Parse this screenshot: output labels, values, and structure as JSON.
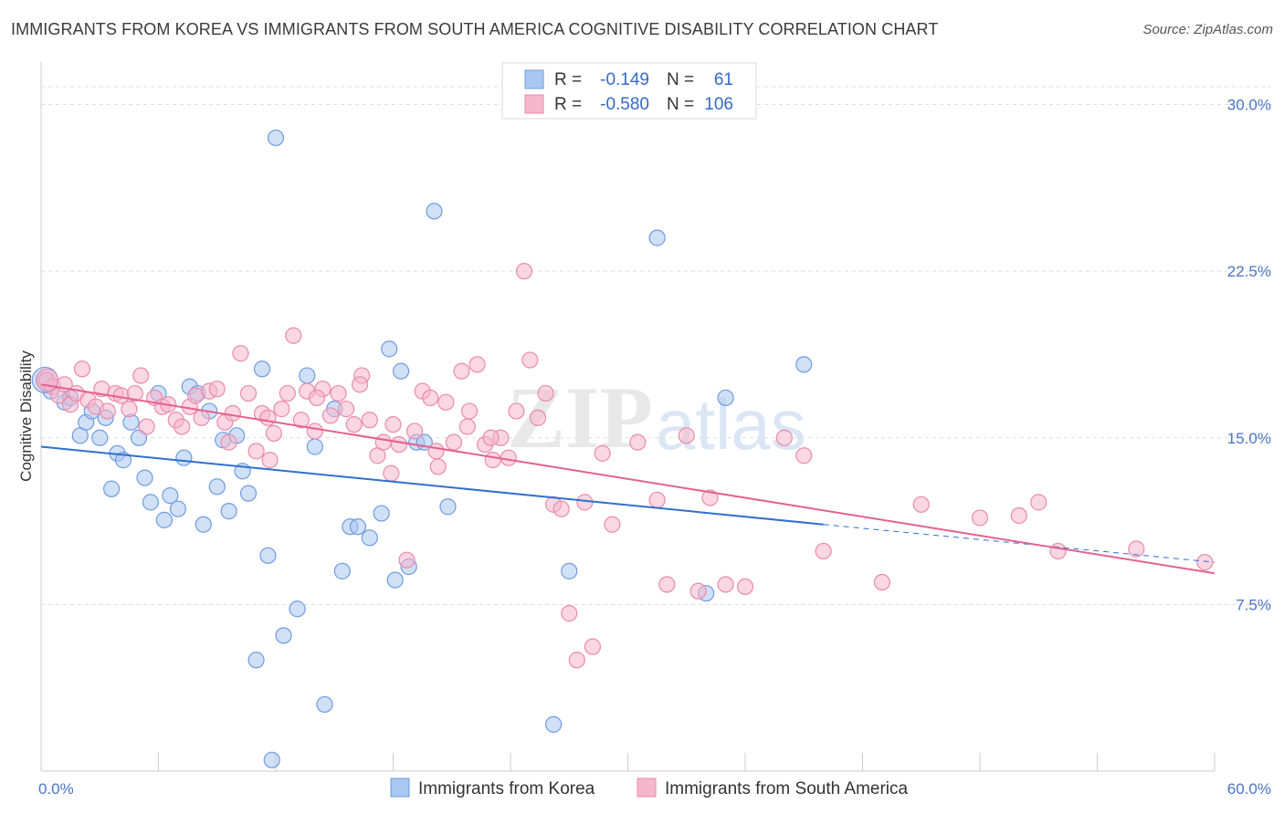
{
  "title": "IMMIGRANTS FROM KOREA VS IMMIGRANTS FROM SOUTH AMERICA COGNITIVE DISABILITY CORRELATION CHART",
  "source": "Source: ZipAtlas.com",
  "watermark": "ZIPatlas",
  "colors": {
    "korea_fill": "#a9c7f0",
    "korea_stroke": "#6f9be0",
    "korea_line": "#2f6fd0",
    "sa_fill": "#f6b6cb",
    "sa_stroke": "#ea8aac",
    "sa_line": "#e5608f",
    "axis_label": "#4a74c9",
    "grid": "#dddddd"
  },
  "legend": {
    "rows": [
      {
        "r_label": "R =",
        "r_value": "-0.149",
        "n_label": "N =",
        "n_value": "61"
      },
      {
        "r_label": "R =",
        "r_value": "-0.580",
        "n_label": "N =",
        "n_value": "106"
      }
    ]
  },
  "chart_data": {
    "type": "scatter",
    "xlabel": "",
    "ylabel": "Cognitive Disability",
    "xlim": [
      0,
      60
    ],
    "ylim": [
      0,
      31.5
    ],
    "x_tick_labels": [
      "0.0%",
      "60.0%"
    ],
    "y_tick_labels": [
      "7.5%",
      "15.0%",
      "22.5%",
      "30.0%"
    ],
    "y_ticks": [
      7.5,
      15.0,
      22.5,
      30.0
    ],
    "grid": "horizontal dashed",
    "legend_position": "top-center",
    "series": [
      {
        "name": "Immigrants from Korea",
        "trend": {
          "x0": 0,
          "y0": 14.6,
          "x1": 40,
          "y1": 11.1,
          "dash_to_x": 60,
          "dash_to_y": 9.4
        },
        "points": [
          [
            0.2,
            17.6
          ],
          [
            0.5,
            17.1
          ],
          [
            1.2,
            16.6
          ],
          [
            1.5,
            16.8
          ],
          [
            2.0,
            15.1
          ],
          [
            2.3,
            15.7
          ],
          [
            2.6,
            16.2
          ],
          [
            3.0,
            15.0
          ],
          [
            3.3,
            15.9
          ],
          [
            3.6,
            12.7
          ],
          [
            3.9,
            14.3
          ],
          [
            4.2,
            14.0
          ],
          [
            4.6,
            15.7
          ],
          [
            5.0,
            15.0
          ],
          [
            5.3,
            13.2
          ],
          [
            5.6,
            12.1
          ],
          [
            6.0,
            17.0
          ],
          [
            6.3,
            11.3
          ],
          [
            6.6,
            12.4
          ],
          [
            7.0,
            11.8
          ],
          [
            7.3,
            14.1
          ],
          [
            7.6,
            17.3
          ],
          [
            8.0,
            17.0
          ],
          [
            8.3,
            11.1
          ],
          [
            8.6,
            16.2
          ],
          [
            9.0,
            12.8
          ],
          [
            9.3,
            14.9
          ],
          [
            9.6,
            11.7
          ],
          [
            10.0,
            15.1
          ],
          [
            10.3,
            13.5
          ],
          [
            10.6,
            12.5
          ],
          [
            11.0,
            5.0
          ],
          [
            11.3,
            18.1
          ],
          [
            11.6,
            9.7
          ],
          [
            11.8,
            0.5
          ],
          [
            12.0,
            28.5
          ],
          [
            12.4,
            6.1
          ],
          [
            13.1,
            7.3
          ],
          [
            13.6,
            17.8
          ],
          [
            14.0,
            14.6
          ],
          [
            14.5,
            3.0
          ],
          [
            15.0,
            16.3
          ],
          [
            15.4,
            9.0
          ],
          [
            15.8,
            11.0
          ],
          [
            16.2,
            11.0
          ],
          [
            16.8,
            10.5
          ],
          [
            17.4,
            11.6
          ],
          [
            17.8,
            19.0
          ],
          [
            18.1,
            8.6
          ],
          [
            18.4,
            18.0
          ],
          [
            18.8,
            9.2
          ],
          [
            19.2,
            14.8
          ],
          [
            19.6,
            14.8
          ],
          [
            20.1,
            25.2
          ],
          [
            20.8,
            11.9
          ],
          [
            26.2,
            2.1
          ],
          [
            27.0,
            9.0
          ],
          [
            31.5,
            24.0
          ],
          [
            34.0,
            8.0
          ],
          [
            35.0,
            16.8
          ],
          [
            39.0,
            18.3
          ]
        ]
      },
      {
        "name": "Immigrants from South America",
        "trend": {
          "x0": 0,
          "y0": 17.4,
          "x1": 60,
          "y1": 8.9
        },
        "points": [
          [
            0.3,
            17.6
          ],
          [
            0.6,
            17.3
          ],
          [
            0.9,
            16.9
          ],
          [
            1.2,
            17.4
          ],
          [
            1.5,
            16.5
          ],
          [
            1.8,
            17.0
          ],
          [
            2.1,
            18.1
          ],
          [
            2.4,
            16.7
          ],
          [
            2.8,
            16.4
          ],
          [
            3.1,
            17.2
          ],
          [
            3.4,
            16.2
          ],
          [
            3.8,
            17.0
          ],
          [
            4.1,
            16.9
          ],
          [
            4.5,
            16.3
          ],
          [
            4.8,
            17.0
          ],
          [
            5.1,
            17.8
          ],
          [
            5.4,
            15.5
          ],
          [
            5.8,
            16.8
          ],
          [
            6.2,
            16.4
          ],
          [
            6.5,
            16.5
          ],
          [
            6.9,
            15.8
          ],
          [
            7.2,
            15.5
          ],
          [
            7.6,
            16.4
          ],
          [
            7.9,
            16.9
          ],
          [
            8.2,
            15.9
          ],
          [
            8.6,
            17.1
          ],
          [
            9.0,
            17.2
          ],
          [
            9.4,
            15.7
          ],
          [
            9.8,
            16.1
          ],
          [
            10.2,
            18.8
          ],
          [
            10.6,
            17.0
          ],
          [
            11.0,
            14.4
          ],
          [
            11.3,
            16.1
          ],
          [
            11.6,
            15.9
          ],
          [
            11.9,
            15.2
          ],
          [
            12.3,
            16.3
          ],
          [
            12.6,
            17.0
          ],
          [
            12.9,
            19.6
          ],
          [
            13.3,
            15.8
          ],
          [
            13.6,
            17.1
          ],
          [
            14.0,
            15.3
          ],
          [
            14.4,
            17.2
          ],
          [
            14.8,
            16.0
          ],
          [
            15.2,
            17.0
          ],
          [
            15.6,
            16.3
          ],
          [
            16.0,
            15.6
          ],
          [
            16.4,
            17.8
          ],
          [
            16.8,
            15.8
          ],
          [
            17.2,
            14.2
          ],
          [
            17.5,
            14.8
          ],
          [
            17.9,
            13.4
          ],
          [
            18.3,
            14.7
          ],
          [
            18.7,
            9.5
          ],
          [
            19.1,
            15.3
          ],
          [
            19.5,
            17.1
          ],
          [
            19.9,
            16.8
          ],
          [
            20.3,
            13.7
          ],
          [
            20.7,
            16.6
          ],
          [
            21.1,
            14.8
          ],
          [
            21.5,
            18.0
          ],
          [
            21.9,
            16.2
          ],
          [
            22.3,
            18.3
          ],
          [
            22.7,
            14.7
          ],
          [
            23.1,
            14.0
          ],
          [
            23.5,
            15.0
          ],
          [
            23.9,
            14.1
          ],
          [
            24.3,
            16.2
          ],
          [
            24.7,
            22.5
          ],
          [
            25.0,
            18.5
          ],
          [
            25.4,
            15.9
          ],
          [
            25.8,
            17.0
          ],
          [
            26.2,
            12.0
          ],
          [
            26.6,
            11.8
          ],
          [
            27.0,
            7.1
          ],
          [
            27.4,
            5.0
          ],
          [
            27.8,
            12.1
          ],
          [
            28.2,
            5.6
          ],
          [
            28.7,
            14.3
          ],
          [
            29.2,
            11.1
          ],
          [
            30.5,
            14.8
          ],
          [
            31.5,
            12.2
          ],
          [
            32.0,
            8.4
          ],
          [
            33.0,
            15.1
          ],
          [
            33.6,
            8.1
          ],
          [
            34.2,
            12.3
          ],
          [
            35.0,
            8.4
          ],
          [
            36.0,
            8.3
          ],
          [
            38.0,
            15.0
          ],
          [
            39.0,
            14.2
          ],
          [
            40.0,
            9.9
          ],
          [
            43.0,
            8.5
          ],
          [
            45.0,
            12.0
          ],
          [
            48.0,
            11.4
          ],
          [
            50.0,
            11.5
          ],
          [
            51.0,
            12.1
          ],
          [
            52.0,
            9.9
          ],
          [
            56.0,
            10.0
          ],
          [
            59.5,
            9.4
          ],
          [
            14.1,
            16.8
          ],
          [
            16.3,
            17.4
          ],
          [
            18.0,
            15.6
          ],
          [
            20.2,
            14.4
          ],
          [
            21.8,
            15.5
          ],
          [
            23.0,
            15.0
          ],
          [
            9.6,
            14.8
          ],
          [
            11.7,
            14.0
          ]
        ]
      }
    ]
  },
  "bottom_legend": [
    {
      "label": "Immigrants from Korea"
    },
    {
      "label": "Immigrants from South America"
    }
  ]
}
